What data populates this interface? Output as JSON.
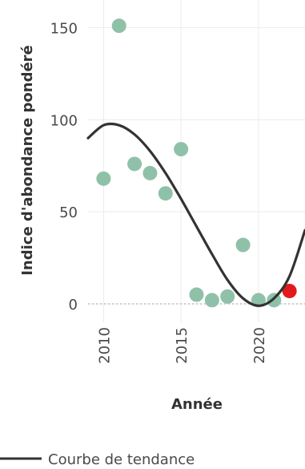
{
  "chart_data": {
    "type": "scatter",
    "xlabel": "Année",
    "ylabel": "Indice d'abondance pondéré",
    "xlim": [
      2009,
      2023
    ],
    "ylim": [
      -10,
      165
    ],
    "x_ticks": [
      "2010",
      "2015",
      "2020"
    ],
    "y_ticks": [
      "0",
      "50",
      "100",
      "150"
    ],
    "grid": true,
    "reference_line_y": 0,
    "series": [
      {
        "marker": "point",
        "color": "#8fc1a9",
        "points": [
          {
            "x": 2010,
            "y": 68
          },
          {
            "x": 2011,
            "y": 151
          },
          {
            "x": 2012,
            "y": 76
          },
          {
            "x": 2013,
            "y": 71
          },
          {
            "x": 2014,
            "y": 60
          },
          {
            "x": 2015,
            "y": 84
          },
          {
            "x": 2016,
            "y": 5
          },
          {
            "x": 2017,
            "y": 2
          },
          {
            "x": 2018,
            "y": 4
          },
          {
            "x": 2019,
            "y": 32
          },
          {
            "x": 2020,
            "y": 2
          },
          {
            "x": 2021,
            "y": 2
          }
        ]
      },
      {
        "marker": "point",
        "color": "#e31a1c",
        "points": [
          {
            "x": 2022,
            "y": 7
          }
        ]
      },
      {
        "name": "Courbe de tendance",
        "marker": "line",
        "color": "#333333",
        "points": [
          {
            "x": 2009,
            "y": 90
          },
          {
            "x": 2010,
            "y": 97
          },
          {
            "x": 2011,
            "y": 97
          },
          {
            "x": 2012,
            "y": 92
          },
          {
            "x": 2013,
            "y": 83
          },
          {
            "x": 2014,
            "y": 71
          },
          {
            "x": 2015,
            "y": 57
          },
          {
            "x": 2016,
            "y": 42
          },
          {
            "x": 2017,
            "y": 27
          },
          {
            "x": 2018,
            "y": 13
          },
          {
            "x": 2019,
            "y": 3
          },
          {
            "x": 2020,
            "y": -1
          },
          {
            "x": 2021,
            "y": 3
          },
          {
            "x": 2022,
            "y": 15
          },
          {
            "x": 2023,
            "y": 40
          }
        ]
      }
    ],
    "legend": {
      "placement": "bottom-left",
      "entries": [
        "Courbe de tendance"
      ]
    }
  }
}
